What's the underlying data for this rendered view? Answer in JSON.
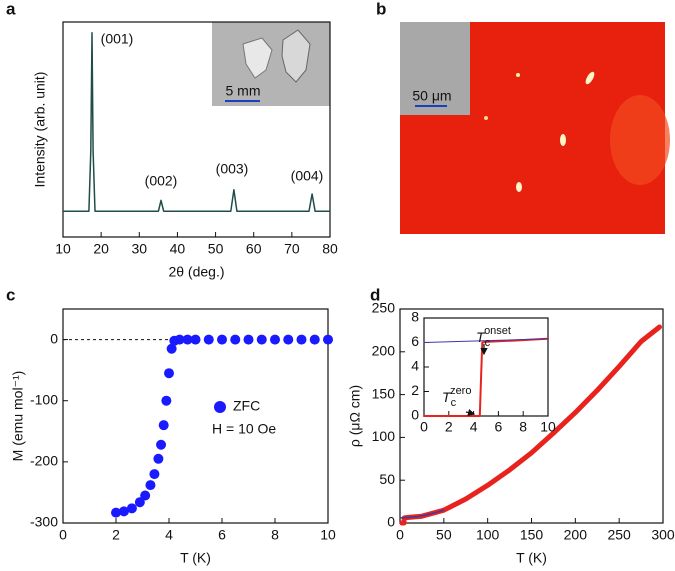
{
  "chart_data": [
    {
      "type": "line",
      "label": "a",
      "xlabel": "2θ (deg.)",
      "ylabel": "Intensity (arb. unit)",
      "xlim": [
        10,
        80
      ],
      "xticks": [
        10,
        20,
        30,
        40,
        50,
        60,
        70,
        80
      ],
      "ylim": [
        0,
        100
      ],
      "x": [
        10,
        16.8,
        17.3,
        17.6,
        17.9,
        18.4,
        35.0,
        35.7,
        36.4,
        54.0,
        54.8,
        55.6,
        74.5,
        75.3,
        76.1,
        80
      ],
      "series": [
        {
          "color": "#1e4d4a",
          "values": [
            12,
            12,
            40,
            95,
            40,
            12,
            12,
            17,
            12,
            12,
            22,
            12,
            12,
            20,
            12,
            12
          ]
        }
      ],
      "annotations": [
        "(001)",
        "(002)",
        "(003)",
        "(004)"
      ],
      "inset_scale_bar": "5 mm"
    },
    {
      "type": "image",
      "label": "b",
      "scale_bar": "50 μm"
    },
    {
      "type": "scatter",
      "label": "c",
      "xlabel": "T (K)",
      "ylabel": "M (emu mol⁻¹)",
      "xlim": [
        0,
        10
      ],
      "xticks": [
        0,
        2,
        4,
        6,
        8,
        10
      ],
      "ylim": [
        -300,
        50
      ],
      "yticks": [
        -300,
        -200,
        -100,
        0
      ],
      "x": [
        2,
        2.3,
        2.6,
        2.9,
        3.1,
        3.3,
        3.45,
        3.6,
        3.7,
        3.8,
        3.9,
        4.0,
        4.1,
        4.2,
        4.4,
        4.7,
        5,
        5.5,
        6,
        6.5,
        7,
        7.5,
        8,
        8.5,
        9,
        9.5,
        10
      ],
      "series": [
        {
          "name": "ZFC",
          "color": "#1a1aff",
          "values": [
            -283,
            -281,
            -276,
            -266,
            -255,
            -238,
            -220,
            -195,
            -172,
            -140,
            -100,
            -55,
            -15,
            -2,
            0,
            0,
            0,
            0,
            0,
            0,
            0,
            0,
            0,
            0,
            0,
            0,
            0
          ]
        }
      ],
      "annotations": [
        "H = 10 Oe"
      ]
    },
    {
      "type": "line",
      "label": "d",
      "xlabel": "T (K)",
      "ylabel": "ρ (μΩ cm)",
      "xlim": [
        0,
        300
      ],
      "xticks": [
        0,
        50,
        100,
        150,
        200,
        250,
        300
      ],
      "ylim": [
        0,
        250
      ],
      "yticks": [
        0,
        50,
        100,
        150,
        200,
        250
      ],
      "series": [
        {
          "color": "#e8231e",
          "x": [
            2,
            4.5,
            5,
            10,
            25,
            50,
            75,
            100,
            125,
            150,
            175,
            200,
            225,
            250,
            275,
            296
          ],
          "values": [
            0,
            0,
            6,
            6.5,
            8,
            15,
            28,
            44,
            62,
            82,
            105,
            129,
            155,
            183,
            212,
            229
          ]
        },
        {
          "color": "#3a3aa8",
          "x": [
            0,
            10,
            20,
            30,
            40,
            50
          ],
          "values": [
            6,
            6.5,
            7.5,
            9.5,
            12,
            15
          ]
        }
      ],
      "inset": {
        "xlim": [
          0,
          10
        ],
        "xticks": [
          0,
          2,
          4,
          6,
          8,
          10
        ],
        "ylim": [
          0,
          8
        ],
        "yticks": [
          0,
          2,
          4,
          6,
          8
        ],
        "series": [
          {
            "color": "#e8231e",
            "x": [
              0,
              1,
              2,
              3,
              4,
              4.5,
              4.6,
              4.7,
              5,
              6,
              7,
              8,
              9,
              10
            ],
            "values": [
              0,
              0,
              0,
              0,
              0,
              0,
              3,
              6,
              6.05,
              6.1,
              6.15,
              6.2,
              6.25,
              6.3
            ]
          },
          {
            "color": "#3a3aa8",
            "x": [
              0,
              10
            ],
            "values": [
              6.0,
              6.3
            ]
          }
        ],
        "annotations": [
          {
            "text": "T",
            "sub": "c",
            "sup": "onset"
          },
          {
            "text": "T",
            "sub": "c",
            "sup": "zero"
          }
        ]
      }
    }
  ]
}
